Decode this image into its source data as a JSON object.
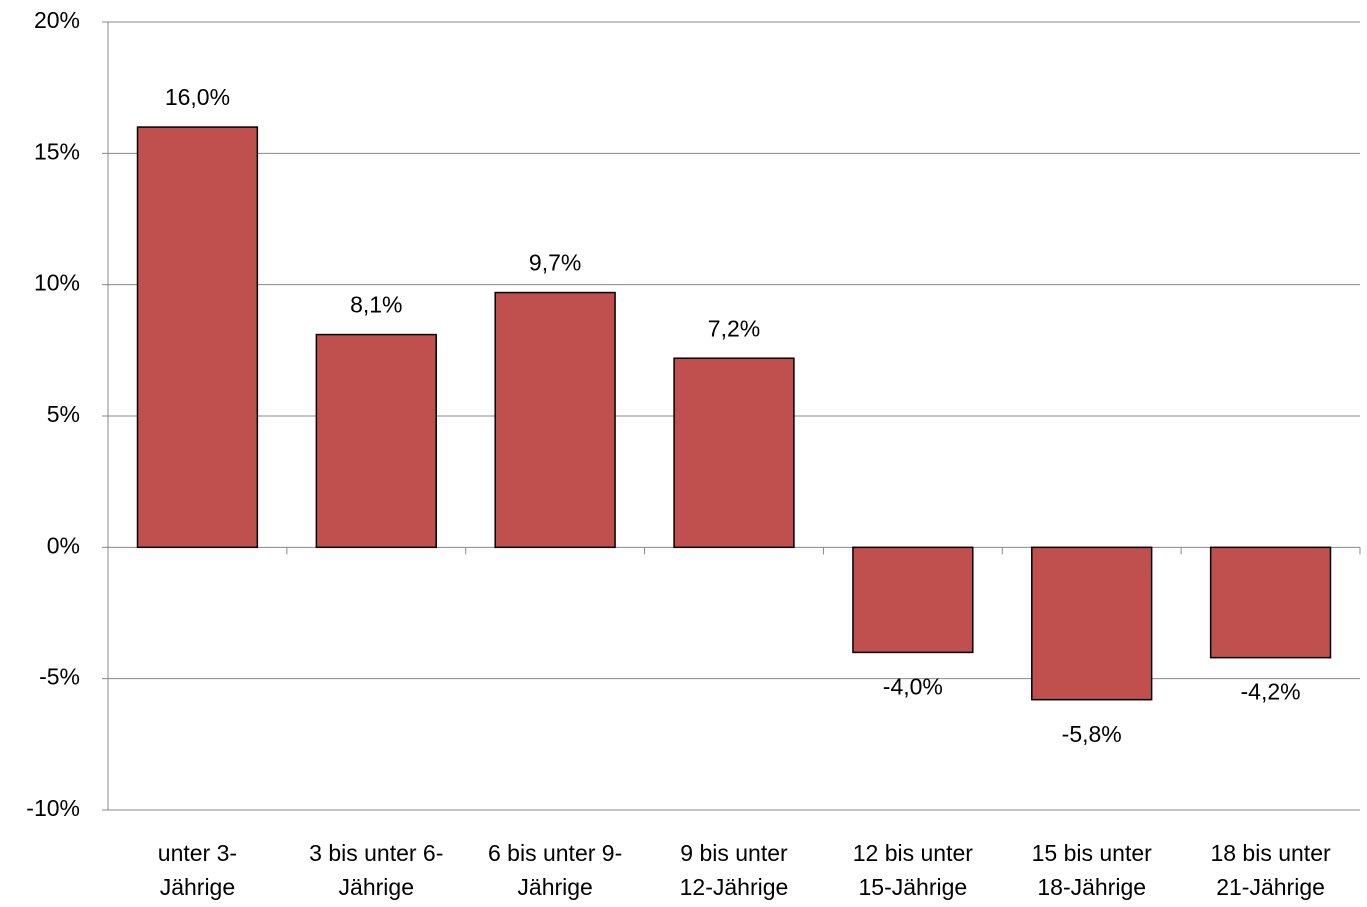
{
  "chart_data": {
    "type": "bar",
    "categories": [
      "unter 3-\nJährige",
      "3 bis unter 6-\nJährige",
      "6 bis unter 9-\nJährige",
      "9 bis unter\n12-Jährige",
      "12 bis unter\n15-Jährige",
      "15 bis unter\n18-Jährige",
      "18 bis unter\n21-Jährige"
    ],
    "values": [
      16.0,
      8.1,
      9.7,
      7.2,
      -4.0,
      -5.8,
      -4.2
    ],
    "value_labels": [
      "16,0%",
      "8,1%",
      "9,7%",
      "7,2%",
      "-4,0%",
      "-5,8%",
      "-4,2%"
    ],
    "color": "#c0504d",
    "ylim": [
      -10,
      20
    ],
    "yticks": [
      {
        "value": -10,
        "label": "-10%"
      },
      {
        "value": -5,
        "label": "-5%"
      },
      {
        "value": 0,
        "label": "0%"
      },
      {
        "value": 5,
        "label": "5%"
      },
      {
        "value": 10,
        "label": "10%"
      },
      {
        "value": 15,
        "label": "15%"
      },
      {
        "value": 20,
        "label": "20%"
      }
    ],
    "grid": true
  }
}
